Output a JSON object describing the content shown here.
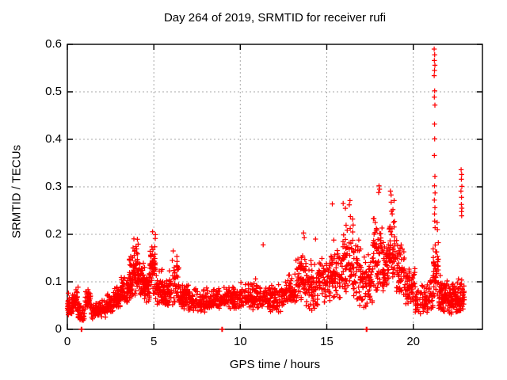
{
  "figure": {
    "background": "#ffffff"
  },
  "chart_data": {
    "type": "scatter",
    "title": "Day 264 of 2019, SRMTID for receiver rufi",
    "xlabel": "GPS time / hours",
    "ylabel": "SRMTID / TECUs",
    "xlim": [
      0,
      24
    ],
    "ylim": [
      0,
      0.6
    ],
    "xticks": [
      0,
      5,
      10,
      15,
      20
    ],
    "xtick_labels": [
      "0",
      "5",
      "10",
      "15",
      "20"
    ],
    "yticks": [
      0,
      0.1,
      0.2,
      0.3,
      0.4,
      0.5,
      0.6
    ],
    "ytick_labels": [
      "0",
      "0.1",
      "0.2",
      "0.3",
      "0.4",
      "0.5",
      "0.6"
    ],
    "grid": true,
    "legend_position": "none",
    "marker": "plus",
    "marker_color": "#ff0000",
    "marker_size": 6.4,
    "grid_color": "#a8a8a8",
    "axis_color": "#000000",
    "series": [
      {
        "name": "SRMTID",
        "density_bands": [
          [
            0.0,
            0.3,
            0.03,
            0.08,
            40
          ],
          [
            0.3,
            0.62,
            0.035,
            0.09,
            40
          ],
          [
            0.62,
            1.0,
            0.015,
            0.055,
            40
          ],
          [
            1.0,
            1.35,
            0.04,
            0.09,
            40
          ],
          [
            1.35,
            1.8,
            0.02,
            0.06,
            45
          ],
          [
            1.8,
            2.25,
            0.025,
            0.065,
            45
          ],
          [
            2.25,
            2.7,
            0.035,
            0.08,
            50
          ],
          [
            2.7,
            3.1,
            0.045,
            0.095,
            50
          ],
          [
            3.1,
            3.5,
            0.05,
            0.12,
            55
          ],
          [
            3.5,
            3.8,
            0.06,
            0.16,
            50
          ],
          [
            3.8,
            4.15,
            0.07,
            0.2,
            55
          ],
          [
            4.15,
            4.5,
            0.06,
            0.15,
            50
          ],
          [
            4.5,
            4.75,
            0.055,
            0.13,
            40
          ],
          [
            4.75,
            5.1,
            0.07,
            0.21,
            55
          ],
          [
            5.1,
            5.5,
            0.05,
            0.14,
            50
          ],
          [
            5.5,
            5.9,
            0.045,
            0.11,
            50
          ],
          [
            5.9,
            6.45,
            0.045,
            0.16,
            55
          ],
          [
            6.45,
            7.0,
            0.04,
            0.1,
            60
          ],
          [
            7.0,
            8.0,
            0.035,
            0.09,
            90
          ],
          [
            8.0,
            9.0,
            0.04,
            0.09,
            90
          ],
          [
            9.0,
            10.0,
            0.04,
            0.095,
            90
          ],
          [
            10.0,
            10.7,
            0.045,
            0.1,
            65
          ],
          [
            10.7,
            11.6,
            0.04,
            0.11,
            80
          ],
          [
            11.6,
            12.6,
            0.035,
            0.1,
            90
          ],
          [
            12.6,
            13.2,
            0.05,
            0.12,
            60
          ],
          [
            13.2,
            13.75,
            0.055,
            0.18,
            60
          ],
          [
            13.75,
            14.5,
            0.04,
            0.15,
            70
          ],
          [
            14.5,
            15.2,
            0.055,
            0.16,
            65
          ],
          [
            15.2,
            15.9,
            0.06,
            0.19,
            65
          ],
          [
            15.9,
            16.55,
            0.07,
            0.26,
            70
          ],
          [
            16.55,
            17.1,
            0.05,
            0.2,
            60
          ],
          [
            17.1,
            17.65,
            0.04,
            0.17,
            55
          ],
          [
            17.65,
            18.25,
            0.07,
            0.29,
            70
          ],
          [
            18.25,
            18.55,
            0.08,
            0.2,
            40
          ],
          [
            18.55,
            18.95,
            0.09,
            0.28,
            55
          ],
          [
            18.95,
            19.5,
            0.07,
            0.2,
            60
          ],
          [
            19.5,
            20.1,
            0.05,
            0.14,
            60
          ],
          [
            20.1,
            20.9,
            0.03,
            0.1,
            65
          ],
          [
            20.9,
            21.15,
            0.04,
            0.12,
            25
          ],
          [
            21.15,
            21.45,
            0.06,
            0.2,
            45
          ],
          [
            21.45,
            22.0,
            0.035,
            0.12,
            75
          ],
          [
            22.0,
            22.5,
            0.03,
            0.11,
            70
          ],
          [
            22.5,
            22.95,
            0.035,
            0.12,
            60
          ]
        ],
        "points": [
          [
            21.21,
            0.59
          ],
          [
            21.24,
            0.578
          ],
          [
            21.22,
            0.566
          ],
          [
            21.25,
            0.556
          ],
          [
            21.23,
            0.545
          ],
          [
            21.21,
            0.534
          ],
          [
            21.24,
            0.502
          ],
          [
            21.22,
            0.489
          ],
          [
            21.25,
            0.472
          ],
          [
            21.23,
            0.432
          ],
          [
            21.24,
            0.401
          ],
          [
            21.22,
            0.366
          ],
          [
            21.25,
            0.322
          ],
          [
            21.23,
            0.302
          ],
          [
            21.26,
            0.287
          ],
          [
            21.22,
            0.272
          ],
          [
            21.25,
            0.256
          ],
          [
            21.23,
            0.243
          ],
          [
            21.24,
            0.228
          ],
          [
            21.26,
            0.214
          ],
          [
            21.38,
            0.225
          ],
          [
            21.4,
            0.21
          ],
          [
            22.77,
            0.336
          ],
          [
            22.8,
            0.326
          ],
          [
            22.78,
            0.316
          ],
          [
            22.81,
            0.301
          ],
          [
            22.76,
            0.291
          ],
          [
            22.79,
            0.278
          ],
          [
            22.78,
            0.263
          ],
          [
            22.81,
            0.255
          ],
          [
            22.79,
            0.248
          ],
          [
            22.8,
            0.239
          ],
          [
            11.32,
            0.178
          ],
          [
            13.66,
            0.203
          ],
          [
            13.7,
            0.193
          ],
          [
            14.35,
            0.19
          ],
          [
            15.32,
            0.264
          ],
          [
            15.95,
            0.265
          ],
          [
            16.34,
            0.271
          ],
          [
            16.3,
            0.262
          ],
          [
            18.02,
            0.302
          ],
          [
            18.05,
            0.295
          ],
          [
            18.0,
            0.288
          ],
          [
            18.68,
            0.291
          ],
          [
            18.72,
            0.283
          ],
          [
            6.12,
            0.165
          ],
          [
            0.8,
            0.0
          ],
          [
            0.84,
            0.0
          ],
          [
            8.93,
            0.0
          ],
          [
            8.97,
            0.0
          ],
          [
            17.28,
            0.0
          ],
          [
            17.32,
            0.0
          ]
        ]
      }
    ]
  }
}
